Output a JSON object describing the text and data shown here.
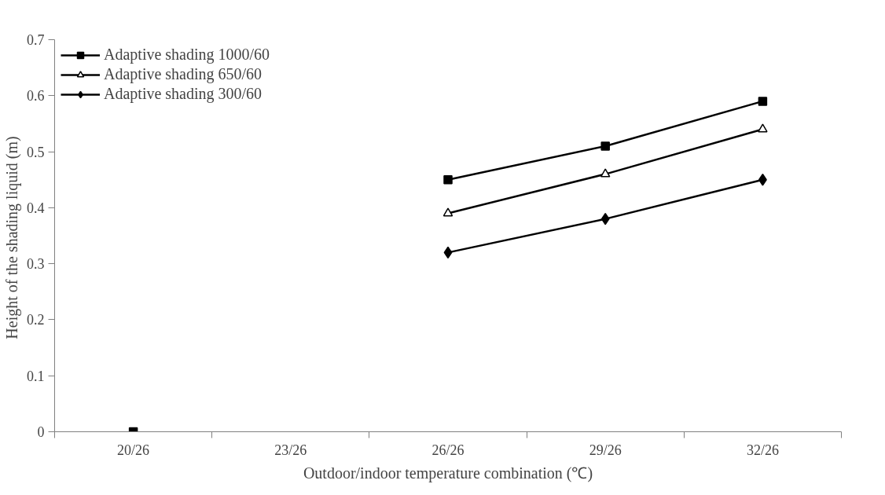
{
  "chart_data": {
    "type": "line",
    "xlabel": "Outdoor/indoor temperature combination (℃)",
    "ylabel": "Height of  the shading liquid (m)",
    "categories": [
      "20/26",
      "23/26",
      "26/26",
      "29/26",
      "32/26"
    ],
    "series": [
      {
        "name": "Adaptive shading 1000/60",
        "color": "#000000",
        "marker": "square",
        "values": [
          0,
          null,
          0.45,
          0.51,
          0.59
        ]
      },
      {
        "name": "Adaptive shading 650/60",
        "color": "#000000",
        "marker": "triangle",
        "values": [
          null,
          null,
          0.39,
          0.46,
          0.54
        ]
      },
      {
        "name": "Adaptive shading 300/60",
        "color": "#000000",
        "marker": "diamond",
        "values": [
          null,
          null,
          0.32,
          0.38,
          0.45
        ]
      }
    ],
    "ylim": [
      0,
      0.7
    ],
    "yticks": [
      0,
      0.1,
      0.2,
      0.3,
      0.4,
      0.5,
      0.6,
      0.7
    ],
    "grid": false,
    "legend": "top left",
    "line_style": "solid"
  }
}
